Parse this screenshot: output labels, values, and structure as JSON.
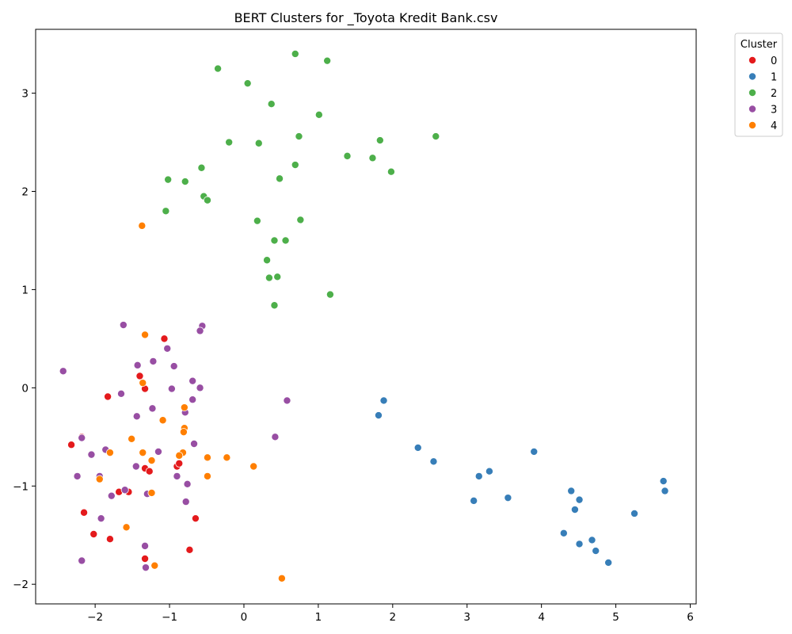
{
  "chart_data": {
    "type": "scatter",
    "title": "BERT Clusters for _Toyota Kredit Bank.csv",
    "xlabel": "",
    "ylabel": "",
    "xlim": [
      -2.8,
      6.08
    ],
    "ylim": [
      -2.2,
      3.65
    ],
    "xticks": [
      -2,
      -1,
      0,
      1,
      2,
      3,
      4,
      5,
      6
    ],
    "yticks": [
      -2,
      -1,
      0,
      1,
      2,
      3
    ],
    "grid": false,
    "legend": {
      "title": "Cluster",
      "placement": "outside-top-right"
    },
    "series": [
      {
        "name": "0",
        "color": "#e41a1c",
        "points": [
          [
            -1.07,
            0.5
          ],
          [
            -1.4,
            0.12
          ],
          [
            -1.33,
            -0.01
          ],
          [
            -1.83,
            -0.09
          ],
          [
            -2.18,
            -0.5
          ],
          [
            -2.32,
            -0.58
          ],
          [
            -1.68,
            -1.06
          ],
          [
            -1.55,
            -1.06
          ],
          [
            -1.33,
            -0.82
          ],
          [
            -1.27,
            -0.85
          ],
          [
            -0.9,
            -0.8
          ],
          [
            -0.87,
            -0.77
          ],
          [
            -2.15,
            -1.27
          ],
          [
            -2.02,
            -1.49
          ],
          [
            -1.8,
            -1.54
          ],
          [
            -0.65,
            -1.33
          ],
          [
            -0.73,
            -1.65
          ],
          [
            -1.33,
            -1.74
          ]
        ]
      },
      {
        "name": "1",
        "color": "#377eb8",
        "points": [
          [
            1.88,
            -0.13
          ],
          [
            1.81,
            -0.28
          ],
          [
            2.34,
            -0.61
          ],
          [
            2.55,
            -0.75
          ],
          [
            3.16,
            -0.9
          ],
          [
            3.3,
            -0.85
          ],
          [
            3.09,
            -1.15
          ],
          [
            3.55,
            -1.12
          ],
          [
            3.9,
            -0.65
          ],
          [
            4.4,
            -1.05
          ],
          [
            4.51,
            -1.14
          ],
          [
            4.45,
            -1.24
          ],
          [
            4.3,
            -1.48
          ],
          [
            4.51,
            -1.59
          ],
          [
            4.68,
            -1.55
          ],
          [
            4.73,
            -1.66
          ],
          [
            4.9,
            -1.78
          ],
          [
            5.25,
            -1.28
          ],
          [
            5.64,
            -0.95
          ],
          [
            5.66,
            -1.05
          ]
        ]
      },
      {
        "name": "2",
        "color": "#4daf4a",
        "points": [
          [
            -0.35,
            3.25
          ],
          [
            0.05,
            3.1
          ],
          [
            0.69,
            3.4
          ],
          [
            1.12,
            3.33
          ],
          [
            0.37,
            2.89
          ],
          [
            1.01,
            2.78
          ],
          [
            -0.2,
            2.5
          ],
          [
            0.2,
            2.49
          ],
          [
            0.74,
            2.56
          ],
          [
            0.69,
            2.27
          ],
          [
            1.39,
            2.36
          ],
          [
            1.73,
            2.34
          ],
          [
            1.83,
            2.52
          ],
          [
            2.58,
            2.56
          ],
          [
            1.98,
            2.2
          ],
          [
            -1.02,
            2.12
          ],
          [
            -0.79,
            2.1
          ],
          [
            -0.57,
            2.24
          ],
          [
            0.48,
            2.13
          ],
          [
            -0.54,
            1.95
          ],
          [
            -0.49,
            1.91
          ],
          [
            -1.05,
            1.8
          ],
          [
            0.18,
            1.7
          ],
          [
            0.76,
            1.71
          ],
          [
            0.41,
            1.5
          ],
          [
            0.56,
            1.5
          ],
          [
            0.31,
            1.3
          ],
          [
            0.34,
            1.12
          ],
          [
            0.45,
            1.13
          ],
          [
            1.16,
            0.95
          ],
          [
            0.41,
            0.84
          ]
        ]
      },
      {
        "name": "3",
        "color": "#984ea3",
        "points": [
          [
            -2.43,
            0.17
          ],
          [
            -1.62,
            0.64
          ],
          [
            -0.56,
            0.63
          ],
          [
            -0.59,
            0.58
          ],
          [
            -1.03,
            0.4
          ],
          [
            -1.22,
            0.27
          ],
          [
            -1.43,
            0.23
          ],
          [
            -0.94,
            0.22
          ],
          [
            -0.69,
            0.07
          ],
          [
            -0.59,
            0.0
          ],
          [
            -0.97,
            -0.01
          ],
          [
            -1.65,
            -0.06
          ],
          [
            -0.69,
            -0.12
          ],
          [
            0.58,
            -0.13
          ],
          [
            -0.79,
            -0.25
          ],
          [
            -1.23,
            -0.21
          ],
          [
            -1.44,
            -0.29
          ],
          [
            0.42,
            -0.5
          ],
          [
            -2.18,
            -0.51
          ],
          [
            -0.67,
            -0.57
          ],
          [
            -1.15,
            -0.65
          ],
          [
            -1.86,
            -0.63
          ],
          [
            -2.05,
            -0.68
          ],
          [
            -1.45,
            -0.8
          ],
          [
            -2.24,
            -0.9
          ],
          [
            -1.94,
            -0.9
          ],
          [
            -0.9,
            -0.9
          ],
          [
            -0.76,
            -0.98
          ],
          [
            -1.6,
            -1.04
          ],
          [
            -1.78,
            -1.1
          ],
          [
            -1.3,
            -1.08
          ],
          [
            -0.78,
            -1.16
          ],
          [
            -1.92,
            -1.33
          ],
          [
            -1.33,
            -1.61
          ],
          [
            -2.18,
            -1.76
          ],
          [
            -1.32,
            -1.83
          ]
        ]
      },
      {
        "name": "4",
        "color": "#ff7f00",
        "points": [
          [
            -1.37,
            1.65
          ],
          [
            -1.33,
            0.54
          ],
          [
            -1.36,
            0.05
          ],
          [
            -0.8,
            -0.2
          ],
          [
            -1.09,
            -0.33
          ],
          [
            -0.8,
            -0.41
          ],
          [
            -0.81,
            -0.45
          ],
          [
            -1.51,
            -0.52
          ],
          [
            -1.36,
            -0.66
          ],
          [
            -1.8,
            -0.66
          ],
          [
            -0.82,
            -0.66
          ],
          [
            -0.87,
            -0.69
          ],
          [
            -0.49,
            -0.71
          ],
          [
            -0.23,
            -0.71
          ],
          [
            -1.24,
            -0.74
          ],
          [
            0.13,
            -0.8
          ],
          [
            -0.49,
            -0.9
          ],
          [
            -1.94,
            -0.93
          ],
          [
            -1.24,
            -1.07
          ],
          [
            -1.58,
            -1.42
          ],
          [
            -1.2,
            -1.81
          ],
          [
            0.51,
            -1.94
          ]
        ]
      }
    ]
  }
}
